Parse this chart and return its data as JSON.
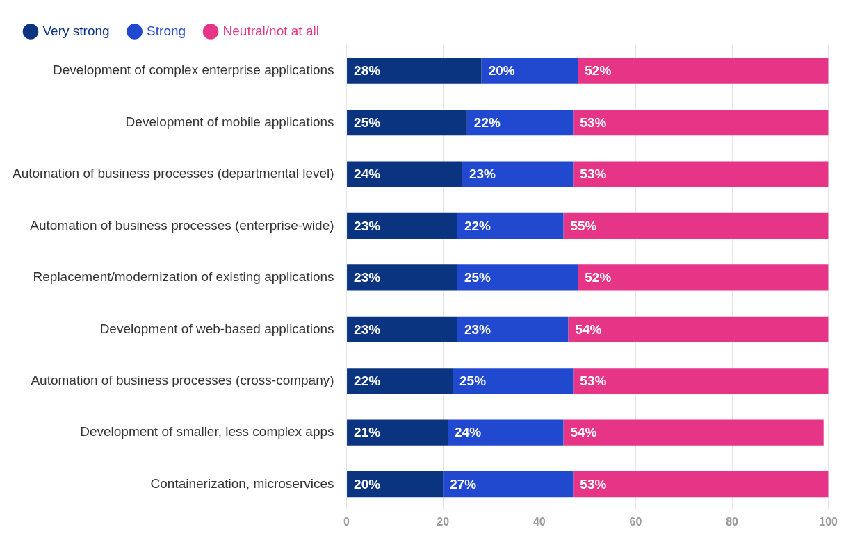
{
  "chart_data": {
    "type": "bar",
    "orientation": "horizontal",
    "stacked": true,
    "categories": [
      "Development of complex enterprise applications",
      "Development of mobile applications",
      "Automation of business processes (departmental level)",
      "Automation of business processes (enterprise-wide)",
      "Replacement/modernization of existing applications",
      "Development of web-based applications",
      "Automation of business processes (cross-company)",
      "Development of smaller, less complex apps",
      "Containerization, microservices"
    ],
    "series": [
      {
        "name": "Very strong",
        "color": "#0a3380",
        "values": [
          28,
          25,
          24,
          23,
          23,
          23,
          22,
          21,
          20
        ],
        "value_labels": [
          "28%",
          "25%",
          "24%",
          "23%",
          "23%",
          "23%",
          "22%",
          "21%",
          "20%"
        ]
      },
      {
        "name": "Strong",
        "color": "#2049d0",
        "values": [
          20,
          22,
          23,
          22,
          25,
          23,
          25,
          24,
          27
        ],
        "value_labels": [
          "20%",
          "22%",
          "23%",
          "22%",
          "25%",
          "23%",
          "25%",
          "24%",
          "27%"
        ]
      },
      {
        "name": "Neutral/not at all",
        "color": "#e63586",
        "values": [
          52,
          53,
          53,
          55,
          52,
          54,
          53,
          54,
          53
        ],
        "value_labels": [
          "52%",
          "53%",
          "53%",
          "55%",
          "52%",
          "54%",
          "53%",
          "54%",
          "53%"
        ]
      }
    ],
    "xlim": [
      0,
      100
    ],
    "xticks": [
      0,
      20,
      40,
      60,
      80,
      100
    ],
    "grid": "x",
    "legend": "top left"
  }
}
